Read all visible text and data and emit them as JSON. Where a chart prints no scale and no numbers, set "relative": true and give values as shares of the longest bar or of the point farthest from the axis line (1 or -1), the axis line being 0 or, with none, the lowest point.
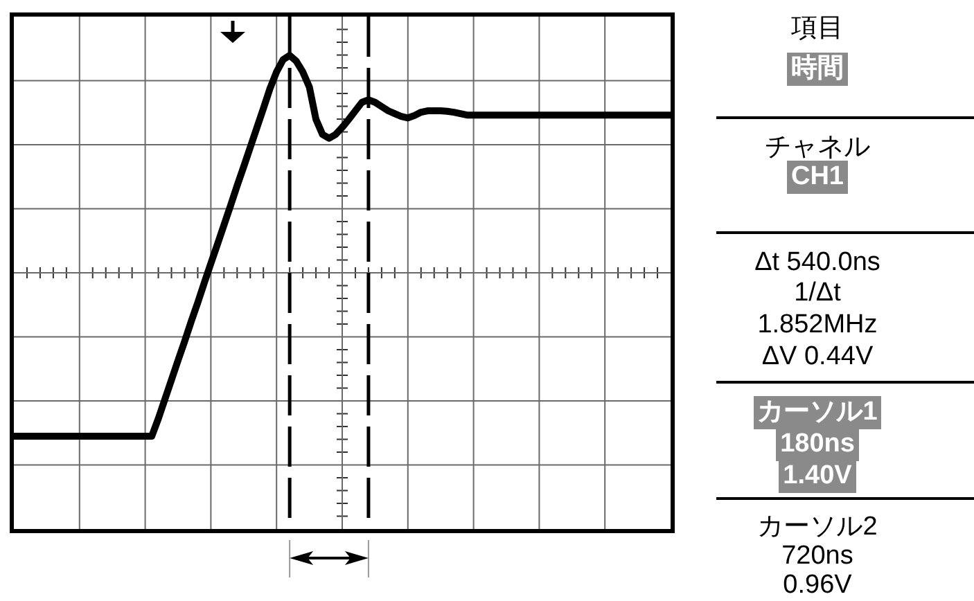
{
  "chart_data": [
    {
      "type": "line",
      "relative": true,
      "categories": [
        null,
        null,
        null,
        null,
        null,
        null,
        null,
        null,
        null,
        null,
        null,
        null,
        null,
        null,
        null,
        null,
        null,
        null,
        null,
        null,
        null,
        null,
        null,
        null,
        null,
        null,
        null,
        null,
        null,
        null,
        null,
        null,
        null,
        null,
        null,
        null,
        null,
        null,
        null,
        null,
        null,
        null,
        null,
        null,
        null,
        null,
        null,
        null,
        null,
        null,
        null,
        null,
        null,
        null,
        null,
        null,
        null,
        null,
        null,
        null,
        null,
        null,
        null,
        null,
        null,
        null,
        null,
        null,
        null,
        null,
        null,
        null,
        null,
        null,
        null,
        null,
        null,
        null,
        null,
        null,
        null,
        null,
        null,
        null,
        null,
        null,
        null,
        null,
        null,
        null,
        null,
        null,
        null,
        null,
        null,
        null,
        null,
        null,
        null,
        null,
        null
      ],
      "series": [
        {
          "color": "#000000",
          "values": [
            0.196,
            0.196,
            0.196,
            0.196,
            0.196,
            0.196,
            0.196,
            0.196,
            0.196,
            0.196,
            0.196,
            0.196,
            0.196,
            0.196,
            0.196,
            0.196,
            0.196,
            0.196,
            0.196,
            0.196,
            0.196,
            0.196,
            0.233,
            0.274,
            0.315,
            0.356,
            0.396,
            0.438,
            0.478,
            0.52,
            0.561,
            0.601,
            0.642,
            0.683,
            0.725,
            0.765,
            0.806,
            0.847,
            0.888,
            0.93,
            0.965,
            0.991,
            1,
            0.988,
            0.965,
            0.933,
            0.865,
            0.833,
            0.825,
            0.833,
            0.848,
            0.865,
            0.883,
            0.901,
            0.906,
            0.901,
            0.892,
            0.883,
            0.877,
            0.871,
            0.868,
            0.873,
            0.88,
            0.883,
            0.883,
            0.883,
            0.882,
            0.88,
            0.877,
            0.874,
            0.874,
            0.874,
            0.874,
            0.874,
            0.874,
            0.874,
            0.874,
            0.874,
            0.874,
            0.874,
            0.874,
            0.874,
            0.874,
            0.874,
            0.874,
            0.874,
            0.874,
            0.874,
            0.874,
            0.874,
            0.874,
            0.874,
            0.874,
            0.874,
            0.874,
            0.874,
            0.874,
            0.874,
            0.874,
            0.874,
            0.874
          ]
        }
      ],
      "grid": true
    },
    {
      "type": "other",
      "annotations": [
        "項目",
        "時間",
        "チャネル",
        "CH1",
        "Δt 540.0ns",
        "1/Δt",
        "1.852MHz",
        "ΔV 0.44V",
        "カーソル1",
        "180ns",
        "1.40V",
        "カーソル2",
        "720ns",
        "0.96V"
      ]
    }
  ]
}
